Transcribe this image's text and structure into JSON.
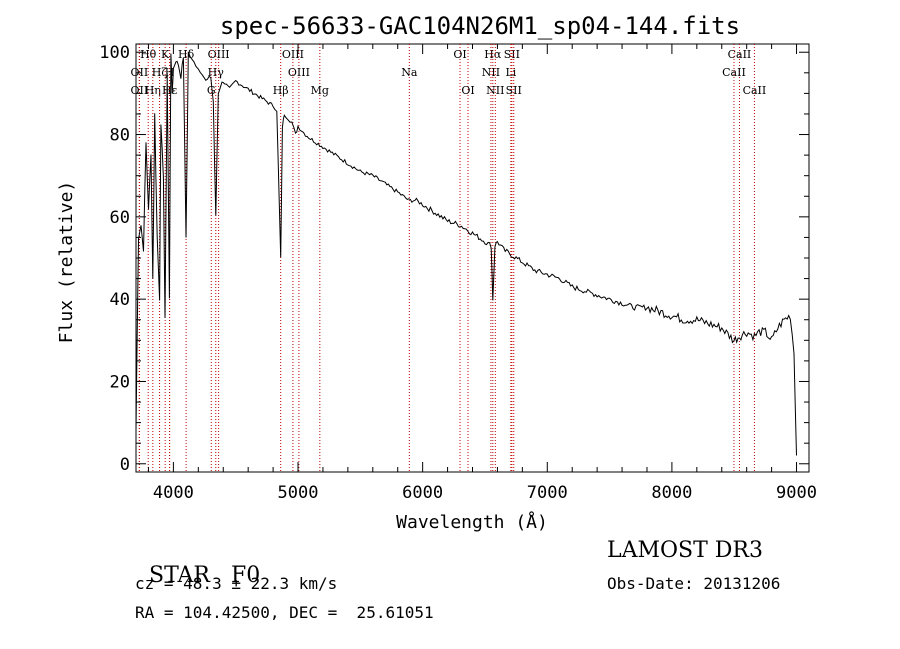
{
  "chart_data": {
    "type": "line",
    "title": "spec-56633-GAC104N26M1_sp04-144.fits",
    "xlabel": "Wavelength (Å)",
    "ylabel": "Flux (relative)",
    "xlim": [
      3700,
      9100
    ],
    "ylim": [
      -2,
      102
    ],
    "xticks": [
      4000,
      5000,
      6000,
      7000,
      8000,
      9000
    ],
    "yticks": [
      0,
      20,
      40,
      60,
      80,
      100
    ],
    "series": [
      {
        "name": "spectrum",
        "x": [
          3700,
          3720,
          3740,
          3760,
          3780,
          3800,
          3820,
          3835,
          3850,
          3870,
          3889,
          3900,
          3920,
          3933,
          3950,
          3968,
          3980,
          3990,
          4000,
          4020,
          4040,
          4060,
          4080,
          4101,
          4120,
          4150,
          4180,
          4200,
          4230,
          4260,
          4300,
          4320,
          4340,
          4360,
          4380,
          4400,
          4450,
          4500,
          4550,
          4600,
          4650,
          4700,
          4750,
          4800,
          4830,
          4861,
          4875,
          4890,
          4920,
          4950,
          4980,
          5000,
          5030,
          5060,
          5100,
          5150,
          5200,
          5300,
          5400,
          5500,
          5600,
          5700,
          5800,
          5890,
          5950,
          6000,
          6100,
          6200,
          6300,
          6400,
          6500,
          6550,
          6563,
          6580,
          6600,
          6650,
          6700,
          6750,
          6800,
          6900,
          7000,
          7100,
          7200,
          7300,
          7400,
          7500,
          7600,
          7700,
          7800,
          7900,
          8000,
          8100,
          8200,
          8300,
          8400,
          8498,
          8542,
          8600,
          8662,
          8700,
          8750,
          8800,
          8850,
          8900,
          8950,
          8980,
          9000
        ],
        "values": [
          8,
          55,
          58,
          52,
          78,
          62,
          75,
          45,
          85,
          55,
          40,
          82,
          70,
          35,
          95,
          40,
          100,
          90,
          96,
          98,
          97,
          94,
          99,
          55,
          100,
          98,
          97,
          96,
          95,
          93,
          94,
          88,
          60,
          90,
          92,
          93,
          91,
          93,
          92,
          91,
          90,
          89,
          88,
          87,
          86,
          50,
          82,
          85,
          84,
          83,
          80,
          82,
          81,
          80,
          79,
          78,
          77,
          75,
          73,
          71,
          70,
          68,
          66,
          64,
          64,
          63,
          61,
          59,
          58,
          56,
          54,
          53,
          40,
          53,
          54,
          52,
          51,
          50,
          49,
          47,
          46,
          45,
          43,
          42,
          41,
          40,
          39,
          38,
          38,
          37,
          36,
          35,
          35,
          34,
          33,
          30,
          31,
          32,
          31,
          32,
          32,
          30,
          33,
          35,
          36,
          27,
          2
        ]
      }
    ],
    "lines": [
      {
        "label": "Hθ",
        "x": 3798,
        "row": 1
      },
      {
        "label": "OII",
        "x": 3727,
        "row": 2
      },
      {
        "label": "OII",
        "x": 3727,
        "row": 3
      },
      {
        "label": "Hη",
        "x": 3835,
        "row": 3
      },
      {
        "label": "K",
        "x": 3934,
        "row": 1
      },
      {
        "label": "Hζ",
        "x": 3889,
        "row": 2
      },
      {
        "label": "Hε",
        "x": 3970,
        "row": 3
      },
      {
        "label": "Hδ",
        "x": 4102,
        "row": 1
      },
      {
        "label": "H",
        "x": 3969,
        "row": 2
      },
      {
        "label": "OIII",
        "x": 4363,
        "row": 1
      },
      {
        "label": "Hγ",
        "x": 4340,
        "row": 2
      },
      {
        "label": "G",
        "x": 4304,
        "row": 3
      },
      {
        "label": "OIII",
        "x": 4959,
        "row": 1
      },
      {
        "label": "OIII",
        "x": 5007,
        "row": 2
      },
      {
        "label": "Hβ",
        "x": 4861,
        "row": 3
      },
      {
        "label": "Mg",
        "x": 5175,
        "row": 3
      },
      {
        "label": "Na",
        "x": 5893,
        "row": 2
      },
      {
        "label": "OI",
        "x": 6300,
        "row": 1
      },
      {
        "label": "OI",
        "x": 6364,
        "row": 3
      },
      {
        "label": "Hα",
        "x": 6563,
        "row": 1
      },
      {
        "label": "NII",
        "x": 6548,
        "row": 2
      },
      {
        "label": "NII",
        "x": 6583,
        "row": 3
      },
      {
        "label": "SII",
        "x": 6716,
        "row": 1
      },
      {
        "label": "Li",
        "x": 6708,
        "row": 2
      },
      {
        "label": "SII",
        "x": 6731,
        "row": 3
      },
      {
        "label": "CaII",
        "x": 8542,
        "row": 1
      },
      {
        "label": "CaII",
        "x": 8498,
        "row": 2
      },
      {
        "label": "CaII",
        "x": 8662,
        "row": 3
      }
    ]
  },
  "info": {
    "class_label": "STAR",
    "subclass": "F0",
    "survey": "LAMOST DR3",
    "cz": "cz = 48.3 ± 22.3 km/s",
    "obs_date": "Obs-Date: 20131206",
    "coords": "RA = 104.42500, DEC =  25.61051"
  },
  "colors": {
    "line_marker": "#c00000",
    "spectrum": "#000000"
  }
}
